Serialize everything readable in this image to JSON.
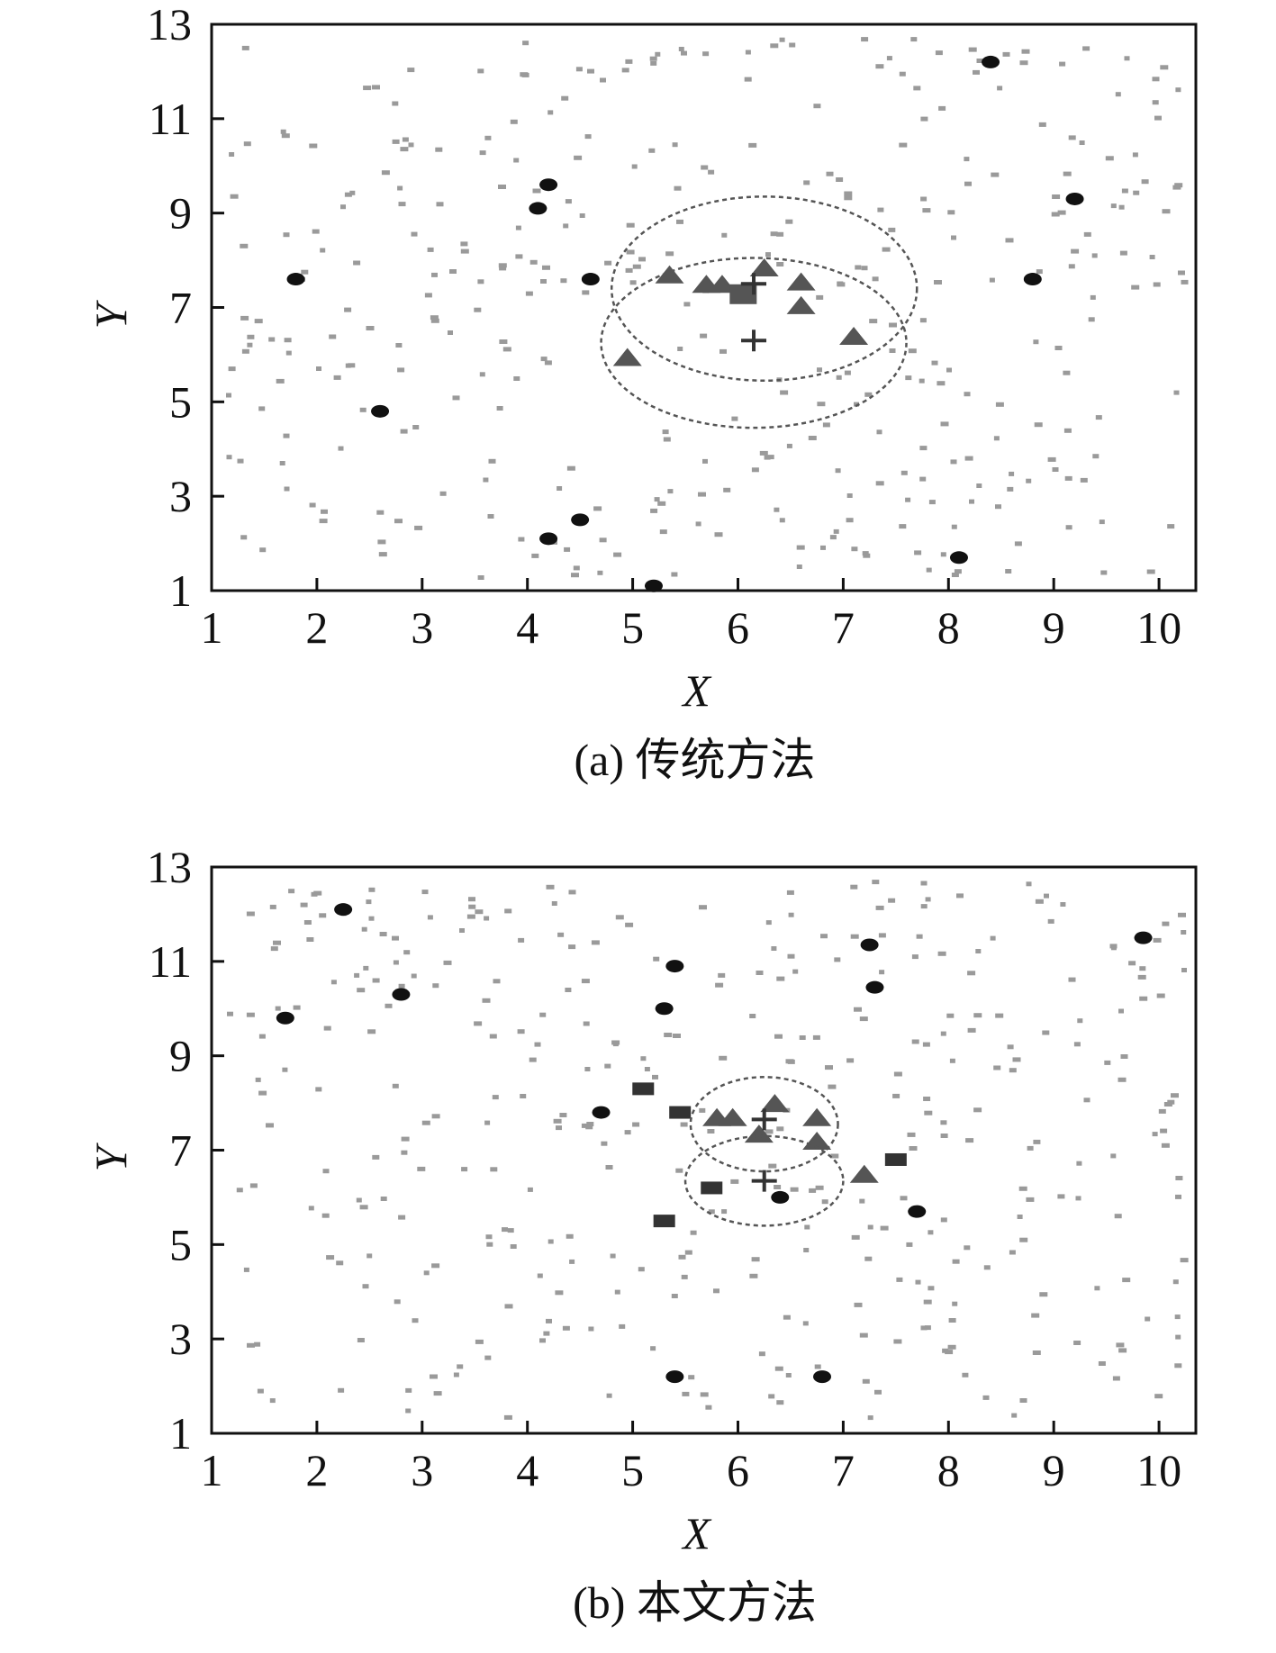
{
  "chart_data": [
    {
      "type": "scatter",
      "caption": "(a) 传统方法",
      "xlabel": "X",
      "ylabel": "Y",
      "xlim": [
        1,
        10.35
      ],
      "ylim": [
        1,
        13
      ],
      "xticks": [
        1,
        2,
        3,
        4,
        5,
        6,
        7,
        8,
        9,
        10
      ],
      "yticks": [
        1,
        3,
        5,
        7,
        9,
        11,
        13
      ],
      "grid": false,
      "colors": {
        "background_dot": "#9a9a9a",
        "marker": "#555555",
        "node": "#111111"
      },
      "series": [
        {
          "marker": "circle",
          "points": [
            [
              8.4,
              12.2
            ],
            [
              4.2,
              9.6
            ],
            [
              4.1,
              9.1
            ],
            [
              9.2,
              9.3
            ],
            [
              1.8,
              7.6
            ],
            [
              4.6,
              7.6
            ],
            [
              8.8,
              7.6
            ],
            [
              2.6,
              4.8
            ],
            [
              4.5,
              2.5
            ],
            [
              4.2,
              2.1
            ],
            [
              5.2,
              1.1
            ],
            [
              8.1,
              1.7
            ]
          ]
        },
        {
          "marker": "triangle",
          "points": [
            [
              5.35,
              7.7
            ],
            [
              5.7,
              7.5
            ],
            [
              5.85,
              7.5
            ],
            [
              6.25,
              7.85
            ],
            [
              6.6,
              7.55
            ],
            [
              6.6,
              7.05
            ],
            [
              7.1,
              6.4
            ],
            [
              4.95,
              5.95
            ]
          ]
        },
        {
          "marker": "square",
          "points": [
            [
              6.05,
              7.3
            ]
          ]
        },
        {
          "marker": "plus",
          "points": [
            [
              6.15,
              7.5
            ],
            [
              6.15,
              6.3
            ]
          ]
        },
        {
          "marker": "dashed-ellipse",
          "ellipses": [
            {
              "cx": 6.25,
              "cy": 7.4,
              "rx": 1.45,
              "ry": 1.95
            },
            {
              "cx": 6.15,
              "cy": 6.25,
              "rx": 1.45,
              "ry": 1.8
            }
          ]
        }
      ]
    },
    {
      "type": "scatter",
      "caption": "(b) 本文方法",
      "xlabel": "X",
      "ylabel": "Y",
      "xlim": [
        1,
        10.35
      ],
      "ylim": [
        1,
        13
      ],
      "xticks": [
        1,
        2,
        3,
        4,
        5,
        6,
        7,
        8,
        9,
        10
      ],
      "yticks": [
        1,
        3,
        5,
        7,
        9,
        11,
        13
      ],
      "grid": false,
      "colors": {
        "background_dot": "#9a9a9a",
        "marker": "#555555",
        "node": "#111111"
      },
      "series": [
        {
          "marker": "circle",
          "points": [
            [
              2.25,
              12.1
            ],
            [
              7.25,
              11.35
            ],
            [
              9.85,
              11.5
            ],
            [
              5.4,
              10.9
            ],
            [
              7.3,
              10.45
            ],
            [
              2.8,
              10.3
            ],
            [
              5.3,
              10.0
            ],
            [
              1.7,
              9.8
            ],
            [
              4.7,
              7.8
            ],
            [
              6.4,
              6.0
            ],
            [
              7.7,
              5.7
            ],
            [
              5.4,
              2.2
            ],
            [
              6.8,
              2.2
            ]
          ]
        },
        {
          "marker": "triangle",
          "points": [
            [
              5.8,
              7.7
            ],
            [
              5.95,
              7.7
            ],
            [
              6.35,
              8.0
            ],
            [
              6.2,
              7.35
            ],
            [
              6.75,
              7.7
            ],
            [
              6.75,
              7.2
            ],
            [
              7.2,
              6.5
            ]
          ]
        },
        {
          "marker": "rect",
          "points": [
            [
              5.1,
              8.3
            ],
            [
              5.45,
              7.8
            ],
            [
              7.5,
              6.8
            ],
            [
              5.75,
              6.2
            ],
            [
              5.3,
              5.5
            ]
          ]
        },
        {
          "marker": "plus",
          "points": [
            [
              6.25,
              7.65
            ],
            [
              6.25,
              6.35
            ]
          ]
        },
        {
          "marker": "dashed-ellipse",
          "ellipses": [
            {
              "cx": 6.25,
              "cy": 7.55,
              "rx": 0.7,
              "ry": 1.0
            },
            {
              "cx": 6.25,
              "cy": 6.35,
              "rx": 0.75,
              "ry": 0.95
            }
          ]
        }
      ]
    }
  ]
}
